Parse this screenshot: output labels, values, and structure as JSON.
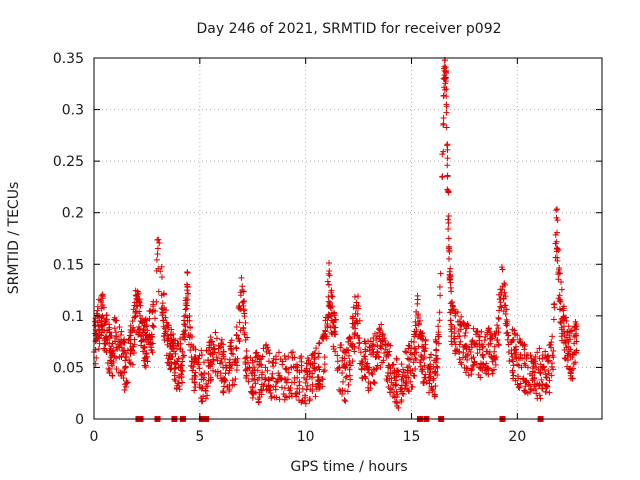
{
  "chart_data": {
    "type": "scatter",
    "title": "Day 246 of 2021, SRMTID for receiver p092",
    "xlabel": "GPS time / hours",
    "ylabel": "SRMTID / TECUs",
    "xlim": [
      0,
      24
    ],
    "ylim": [
      0,
      0.35
    ],
    "x_ticks": [
      0,
      5,
      10,
      15,
      20
    ],
    "y_ticks": [
      0,
      0.05,
      0.1,
      0.15,
      0.2,
      0.25,
      0.3,
      0.35
    ],
    "grid": true,
    "marker": "+",
    "color": "#e00000",
    "series": [
      {
        "name": "SRMTID",
        "sampled_points": [
          [
            0.0,
            0.065
          ],
          [
            0.2,
            0.09
          ],
          [
            0.4,
            0.1
          ],
          [
            0.6,
            0.08
          ],
          [
            0.8,
            0.06
          ],
          [
            1.0,
            0.075
          ],
          [
            1.3,
            0.06
          ],
          [
            1.5,
            0.05
          ],
          [
            1.8,
            0.07
          ],
          [
            2.0,
            0.11
          ],
          [
            2.2,
            0.095
          ],
          [
            2.4,
            0.07
          ],
          [
            2.6,
            0.08
          ],
          [
            2.8,
            0.09
          ],
          [
            3.0,
            0.16
          ],
          [
            3.2,
            0.12
          ],
          [
            3.4,
            0.085
          ],
          [
            3.6,
            0.07
          ],
          [
            3.8,
            0.055
          ],
          [
            4.0,
            0.05
          ],
          [
            4.2,
            0.06
          ],
          [
            4.4,
            0.125
          ],
          [
            4.6,
            0.06
          ],
          [
            4.8,
            0.045
          ],
          [
            5.2,
            0.04
          ],
          [
            5.5,
            0.055
          ],
          [
            5.8,
            0.06
          ],
          [
            6.1,
            0.05
          ],
          [
            6.4,
            0.05
          ],
          [
            6.7,
            0.055
          ],
          [
            7.0,
            0.125
          ],
          [
            7.2,
            0.06
          ],
          [
            7.5,
            0.045
          ],
          [
            7.8,
            0.04
          ],
          [
            8.1,
            0.05
          ],
          [
            8.4,
            0.04
          ],
          [
            8.8,
            0.04
          ],
          [
            9.2,
            0.045
          ],
          [
            9.6,
            0.04
          ],
          [
            10.0,
            0.035
          ],
          [
            10.3,
            0.04
          ],
          [
            10.6,
            0.05
          ],
          [
            10.9,
            0.06
          ],
          [
            11.1,
            0.13
          ],
          [
            11.3,
            0.09
          ],
          [
            11.6,
            0.05
          ],
          [
            11.9,
            0.04
          ],
          [
            12.2,
            0.07
          ],
          [
            12.4,
            0.11
          ],
          [
            12.7,
            0.055
          ],
          [
            13.0,
            0.05
          ],
          [
            13.3,
            0.06
          ],
          [
            13.6,
            0.075
          ],
          [
            13.9,
            0.05
          ],
          [
            14.2,
            0.04
          ],
          [
            14.5,
            0.03
          ],
          [
            14.8,
            0.05
          ],
          [
            15.1,
            0.055
          ],
          [
            15.3,
            0.1
          ],
          [
            15.5,
            0.06
          ],
          [
            15.8,
            0.05
          ],
          [
            16.1,
            0.045
          ],
          [
            16.3,
            0.08
          ],
          [
            16.5,
            0.285
          ],
          [
            16.55,
            0.342
          ],
          [
            16.6,
            0.33
          ],
          [
            16.65,
            0.305
          ],
          [
            16.7,
            0.235
          ],
          [
            16.75,
            0.19
          ],
          [
            16.8,
            0.14
          ],
          [
            16.9,
            0.09
          ],
          [
            17.2,
            0.08
          ],
          [
            17.5,
            0.07
          ],
          [
            17.8,
            0.065
          ],
          [
            18.1,
            0.07
          ],
          [
            18.4,
            0.06
          ],
          [
            18.7,
            0.065
          ],
          [
            19.0,
            0.06
          ],
          [
            19.3,
            0.145
          ],
          [
            19.6,
            0.065
          ],
          [
            19.9,
            0.06
          ],
          [
            20.2,
            0.05
          ],
          [
            20.5,
            0.05
          ],
          [
            20.8,
            0.04
          ],
          [
            21.1,
            0.045
          ],
          [
            21.4,
            0.04
          ],
          [
            21.7,
            0.06
          ],
          [
            21.85,
            0.195
          ],
          [
            21.9,
            0.165
          ],
          [
            22.0,
            0.12
          ],
          [
            22.2,
            0.085
          ],
          [
            22.4,
            0.07
          ],
          [
            22.6,
            0.06
          ],
          [
            22.8,
            0.09
          ]
        ]
      }
    ],
    "zero_markers_x": [
      2.1,
      2.2,
      3.0,
      3.8,
      4.2,
      5.1,
      5.2,
      5.3,
      15.4,
      15.7,
      16.4,
      19.3,
      21.1
    ]
  }
}
